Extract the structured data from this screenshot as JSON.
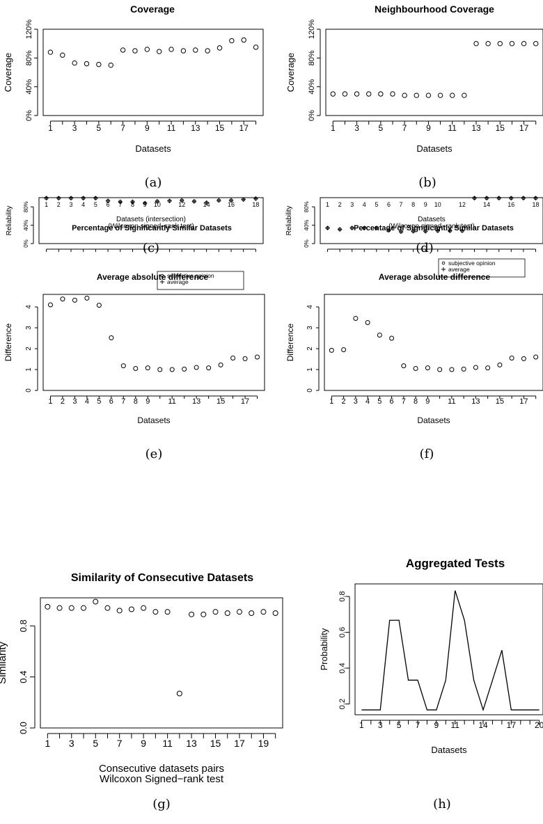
{
  "chart_data": [
    {
      "id": "a",
      "type": "scatter",
      "caption": "(a)",
      "title": "Coverage",
      "xlabel": [
        "Datasets"
      ],
      "ylabel": "Coverage",
      "xlim": [
        0.4,
        18.6
      ],
      "ylim": [
        0,
        1.2
      ],
      "x_ticks": [
        1,
        3,
        5,
        7,
        9,
        11,
        13,
        15,
        17
      ],
      "x_ticks_minor": [
        2,
        4,
        6,
        8,
        10,
        12,
        14,
        16,
        18
      ],
      "y_ticks": [
        0,
        0.4,
        0.8,
        1.2
      ],
      "y_tick_labels": [
        "0%",
        "40%",
        "80%",
        "120%"
      ],
      "series": [
        {
          "marker": "circle",
          "x": [
            1,
            2,
            3,
            4,
            5,
            6,
            7,
            8,
            9,
            10,
            11,
            12,
            13,
            14,
            15,
            16,
            17,
            18
          ],
          "y": [
            0.88,
            0.84,
            0.73,
            0.72,
            0.71,
            0.7,
            0.91,
            0.9,
            0.92,
            0.89,
            0.92,
            0.9,
            0.91,
            0.9,
            0.94,
            1.04,
            1.05,
            0.95
          ]
        }
      ]
    },
    {
      "id": "b",
      "type": "scatter",
      "caption": "(b)",
      "title": "Neighbourhood Coverage",
      "xlabel": [
        "Datasets"
      ],
      "ylabel": "Coverage",
      "xlim": [
        0.4,
        18.6
      ],
      "ylim": [
        0,
        1.2
      ],
      "x_ticks": [
        1,
        3,
        5,
        7,
        9,
        11,
        13,
        15,
        17
      ],
      "x_ticks_minor": [
        2,
        4,
        6,
        8,
        10,
        12,
        14,
        16,
        18
      ],
      "y_ticks": [
        0,
        0.4,
        0.8,
        1.2
      ],
      "y_tick_labels": [
        "0%",
        "40%",
        "80%",
        "120%"
      ],
      "series": [
        {
          "marker": "circle",
          "x": [
            1,
            2,
            3,
            4,
            5,
            6,
            7,
            8,
            9,
            10,
            11,
            12,
            13,
            14,
            15,
            16,
            17,
            18
          ],
          "y": [
            0.3,
            0.3,
            0.3,
            0.3,
            0.3,
            0.3,
            0.28,
            0.28,
            0.28,
            0.28,
            0.28,
            0.28,
            1.0,
            1.0,
            1.0,
            1.0,
            1.0,
            1.0
          ]
        }
      ]
    },
    {
      "id": "c",
      "type": "scatter",
      "caption": "(c)",
      "title": "Percentage of Significantly Similar Datasets",
      "xlabel": [
        "Datasets (intersection)",
        "(Wilcoxon signed−rank test)"
      ],
      "ylabel": "Reliability",
      "xlim": [
        0.4,
        18.6
      ],
      "ylim": [
        0,
        1.0
      ],
      "x_ticks": [
        1,
        2,
        3,
        4,
        5,
        6,
        7,
        8,
        9,
        10,
        12,
        14,
        16,
        18
      ],
      "x_ticks_minor": [
        11,
        13,
        15,
        17
      ],
      "y_ticks": [
        0,
        0.4,
        0.8
      ],
      "y_tick_labels": [
        "0%",
        "40%",
        "80%"
      ],
      "legend": {
        "position": "bottom-right",
        "entries": [
          "subjective opinion",
          "average"
        ]
      },
      "series": [
        {
          "name": "subjective opinion",
          "marker": "circle",
          "x": [
            1,
            2,
            3,
            4,
            5,
            6,
            7,
            8,
            9,
            10,
            11,
            12,
            13,
            14,
            15,
            16,
            17,
            18
          ],
          "y": [
            0.99,
            0.99,
            0.99,
            0.99,
            0.99,
            0.93,
            0.91,
            0.91,
            0.88,
            0.92,
            0.93,
            0.94,
            0.92,
            0.89,
            0.94,
            0.94,
            0.96,
            0.98
          ]
        },
        {
          "name": "average",
          "marker": "plus",
          "x": [
            1,
            2,
            3,
            4,
            5,
            6,
            7,
            8,
            9,
            10,
            11,
            12,
            13,
            14,
            15,
            16,
            17,
            18
          ],
          "y": [
            0.99,
            0.99,
            0.99,
            0.99,
            0.99,
            0.93,
            0.91,
            0.91,
            0.88,
            0.92,
            0.93,
            0.94,
            0.92,
            0.89,
            0.94,
            0.94,
            0.96,
            0.98
          ]
        }
      ]
    },
    {
      "id": "d",
      "type": "scatter",
      "caption": "(d)",
      "title": "Percentage of Significantly Similar Datasets",
      "xlabel": [
        "Datasets",
        "(Wilcoxon signed−rank test)"
      ],
      "ylabel": "Reliability",
      "xlim": [
        0.4,
        18.6
      ],
      "ylim": [
        0,
        1.0
      ],
      "x_ticks": [
        1,
        2,
        3,
        4,
        5,
        6,
        7,
        8,
        9,
        10,
        12,
        14,
        16,
        18
      ],
      "x_ticks_minor": [
        11,
        13,
        15,
        17
      ],
      "y_ticks": [
        0,
        0.4,
        0.8
      ],
      "y_tick_labels": [
        "0%",
        "40%",
        "80%"
      ],
      "legend": {
        "position": "top-right",
        "entries": [
          "subjective opinion",
          "average"
        ]
      },
      "series": [
        {
          "name": "subjective opinion",
          "marker": "circle",
          "x": [
            1,
            2,
            3,
            4,
            5,
            6,
            7,
            8,
            9,
            10,
            11,
            12,
            13,
            14,
            15,
            16,
            17,
            18
          ],
          "y": [
            0.34,
            0.31,
            0.34,
            0.34,
            0.34,
            0.29,
            0.26,
            0.27,
            0.27,
            0.28,
            0.28,
            0.28,
            0.99,
            0.99,
            0.99,
            0.99,
            0.99,
            0.99
          ]
        },
        {
          "name": "average",
          "marker": "plus",
          "x": [
            1,
            2,
            3,
            4,
            5,
            6,
            7,
            8,
            9,
            10,
            11,
            12,
            13,
            14,
            15,
            16,
            17,
            18
          ],
          "y": [
            0.34,
            0.31,
            0.34,
            0.34,
            0.34,
            0.29,
            0.26,
            0.27,
            0.27,
            0.28,
            0.28,
            0.28,
            0.99,
            0.99,
            0.99,
            0.99,
            0.99,
            0.99
          ]
        }
      ]
    },
    {
      "id": "e",
      "type": "scatter",
      "caption": "(e)",
      "title": "Average absolute difference",
      "xlabel": [
        "Datasets"
      ],
      "ylabel": "Difference",
      "xlim": [
        0.4,
        18.6
      ],
      "ylim": [
        0,
        4.6
      ],
      "x_ticks": [
        1,
        2,
        3,
        4,
        5,
        6,
        7,
        8,
        9,
        11,
        13,
        15,
        17
      ],
      "x_ticks_minor": [
        10,
        12,
        14,
        16,
        18
      ],
      "y_ticks": [
        0,
        1,
        2,
        3,
        4
      ],
      "y_tick_labels": [
        "0",
        "1",
        "2",
        "3",
        "4"
      ],
      "series": [
        {
          "marker": "circle",
          "x": [
            1,
            2,
            3,
            4,
            5,
            6,
            7,
            8,
            9,
            10,
            11,
            12,
            13,
            14,
            15,
            16,
            17,
            18
          ],
          "y": [
            4.1,
            4.38,
            4.32,
            4.42,
            4.08,
            2.52,
            1.18,
            1.05,
            1.08,
            1.0,
            1.0,
            1.02,
            1.1,
            1.08,
            1.22,
            1.55,
            1.52,
            1.6
          ]
        }
      ]
    },
    {
      "id": "f",
      "type": "scatter",
      "caption": "(f)",
      "title": "Average absolute difference",
      "xlabel": [
        "Datasets"
      ],
      "ylabel": "Difference",
      "xlim": [
        0.4,
        18.6
      ],
      "ylim": [
        0,
        4.6
      ],
      "x_ticks": [
        1,
        2,
        3,
        4,
        5,
        6,
        7,
        8,
        9,
        11,
        13,
        15,
        17
      ],
      "x_ticks_minor": [
        10,
        12,
        14,
        16,
        18
      ],
      "y_ticks": [
        0,
        1,
        2,
        3,
        4
      ],
      "y_tick_labels": [
        "0",
        "1",
        "2",
        "3",
        "4"
      ],
      "series": [
        {
          "marker": "circle",
          "x": [
            1,
            2,
            3,
            4,
            5,
            6,
            7,
            8,
            9,
            10,
            11,
            12,
            13,
            14,
            15,
            16,
            17,
            18
          ],
          "y": [
            1.92,
            1.95,
            3.45,
            3.25,
            2.65,
            2.5,
            1.18,
            1.05,
            1.08,
            1.0,
            1.0,
            1.02,
            1.1,
            1.08,
            1.22,
            1.55,
            1.52,
            1.6
          ]
        }
      ]
    },
    {
      "id": "g",
      "type": "scatter",
      "caption": "(g)",
      "title": "Similarity of Consecutive Datasets",
      "xlabel": [
        "Consecutive datasets pairs",
        "Wilcoxon Signed−rank test"
      ],
      "ylabel": "Similarity",
      "xlim": [
        0.4,
        20.6
      ],
      "ylim": [
        0,
        1.02
      ],
      "x_ticks": [
        1,
        3,
        5,
        7,
        9,
        11,
        13,
        15,
        17,
        19
      ],
      "x_ticks_minor": [
        2,
        4,
        6,
        8,
        10,
        12,
        14,
        16,
        18,
        20
      ],
      "y_ticks": [
        0,
        0.4,
        0.8
      ],
      "y_tick_labels": [
        "0.0",
        "0.4",
        "0.8"
      ],
      "series": [
        {
          "marker": "circle",
          "x": [
            1,
            2,
            3,
            4,
            5,
            6,
            7,
            8,
            9,
            10,
            11,
            12,
            13,
            14,
            15,
            16,
            17,
            18,
            19,
            20
          ],
          "y": [
            0.95,
            0.94,
            0.94,
            0.94,
            0.99,
            0.94,
            0.92,
            0.93,
            0.94,
            0.91,
            0.91,
            0.27,
            0.89,
            0.89,
            0.91,
            0.9,
            0.91,
            0.9,
            0.91,
            0.9
          ]
        }
      ]
    },
    {
      "id": "h",
      "type": "line",
      "caption": "(h)",
      "title": "Aggregated Tests",
      "xlabel": [
        "Datasets"
      ],
      "ylabel": "Probability",
      "xlim": [
        0.3,
        20.4
      ],
      "ylim": [
        0.14,
        0.87
      ],
      "x_ticks": [
        1,
        3,
        5,
        7,
        9,
        11,
        14,
        17,
        20
      ],
      "x_tick_labels": [
        "1",
        "3",
        "5",
        "7",
        "9",
        "11",
        "14",
        "17",
        "20"
      ],
      "x_ticks_minor": [
        2,
        4,
        6,
        8,
        10,
        12,
        13,
        15,
        16,
        18,
        19
      ],
      "y_ticks": [
        0.2,
        0.4,
        0.6,
        0.8
      ],
      "y_tick_labels": [
        "0.2",
        "0.4",
        "0.6",
        "0.8"
      ],
      "series": [
        {
          "marker": "none",
          "x": [
            1,
            2,
            3,
            4,
            5,
            6,
            7,
            8,
            9,
            10,
            11,
            12,
            13,
            14,
            15,
            16,
            17,
            18,
            19,
            20
          ],
          "y": [
            0.167,
            0.167,
            0.167,
            0.667,
            0.667,
            0.333,
            0.333,
            0.167,
            0.167,
            0.333,
            0.833,
            0.667,
            0.333,
            0.167,
            0.333,
            0.5,
            0.167,
            0.167,
            0.167,
            0.167
          ]
        }
      ]
    }
  ]
}
